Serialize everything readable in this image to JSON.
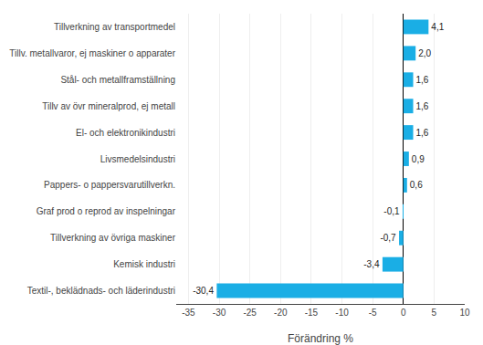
{
  "chart_data": {
    "type": "bar",
    "orientation": "horizontal",
    "categories": [
      "Textil-, beklädnads- och läderindustri",
      "Kemisk industri",
      "Tillverkning av övriga maskiner",
      "Graf prod o reprod av inspelningar",
      "Pappers- o pappersvarutillverkn.",
      "Livsmedelsindustri",
      "El- och elektronikindustri",
      "Tillv av övr mineralprod, ej metall",
      "Stål- och metallframställning",
      "Tillv. metallvaror, ej maskiner o apparater",
      "Tillverkning av transportmedel"
    ],
    "values": [
      -30.4,
      -3.4,
      -0.7,
      -0.1,
      0.6,
      0.9,
      1.6,
      1.6,
      1.6,
      2.0,
      4.1
    ],
    "value_labels": [
      "-30,4",
      "-3,4",
      "-0,7",
      "-0,1",
      "0,6",
      "0,9",
      "1,6",
      "1,6",
      "1,6",
      "2,0",
      "4,1"
    ],
    "data_labels": true,
    "color": "#1aaee5",
    "xlabel": "Förändring %",
    "xlim": [
      -37,
      10
    ],
    "xticks": [
      -35,
      -30,
      -25,
      -20,
      -15,
      -10,
      -5,
      0,
      5,
      10
    ],
    "grid": true
  }
}
